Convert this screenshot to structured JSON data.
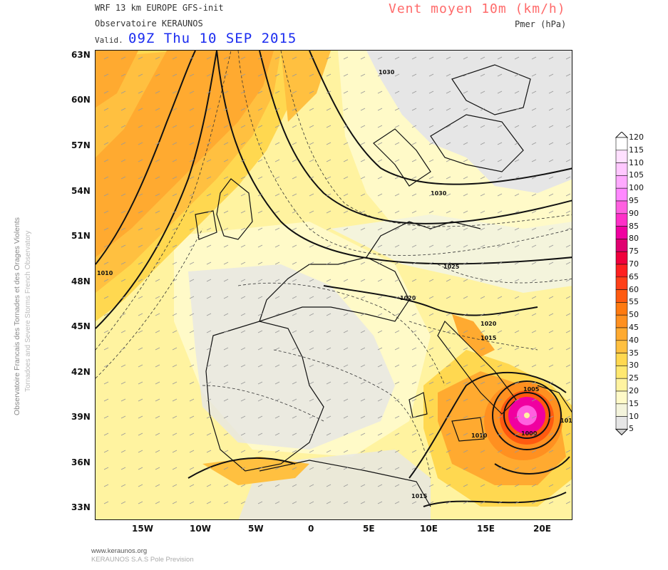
{
  "header": {
    "model_line": "WRF 13 km EUROPE  GFS-init",
    "observatory": "Observatoire KERAUNOS",
    "valid_label": "Valid.",
    "valid_date": "09Z Thu 10 SEP 2015",
    "title": "Vent moyen 10m (km/h)",
    "subtitle": "Pmer (hPa)"
  },
  "side_text": {
    "line1": "Observatoire Francais des Tornades et des Orages Violents",
    "line2": "Tornadoes and Severe Storms French Observatory"
  },
  "footer": {
    "url": "www.keraunos.org",
    "company": "KERAUNOS S.A.S Pole Prevision"
  },
  "axes": {
    "lat_labels": [
      "63N",
      "60N",
      "57N",
      "54N",
      "51N",
      "48N",
      "45N",
      "42N",
      "39N",
      "36N",
      "33N"
    ],
    "lon_labels": [
      "15W",
      "10W",
      "5W",
      "0",
      "5E",
      "10E",
      "15E",
      "20E"
    ]
  },
  "isobar_labels": [
    "1030",
    "1030",
    "1025",
    "1020",
    "1020",
    "1015",
    "1010",
    "1005",
    "1000",
    "1010",
    "1010",
    "1015"
  ],
  "legend": {
    "values": [
      "120",
      "115",
      "110",
      "105",
      "100",
      "95",
      "90",
      "85",
      "80",
      "75",
      "70",
      "65",
      "60",
      "55",
      "50",
      "45",
      "40",
      "35",
      "30",
      "25",
      "20",
      "15",
      "10",
      "5"
    ],
    "colors": [
      "#ffffff",
      "#ffe0ff",
      "#ffc8ff",
      "#ffaaff",
      "#ff88ff",
      "#ff60e0",
      "#ff30c8",
      "#f000a0",
      "#e00070",
      "#f0003c",
      "#ff2020",
      "#ff4018",
      "#ff5a10",
      "#ff7a10",
      "#ff9020",
      "#ffaa30",
      "#ffc040",
      "#ffd850",
      "#ffe870",
      "#fff3a0",
      "#fffac8",
      "#f4f4dc",
      "#e6e6e6",
      "#d2d2d2"
    ]
  },
  "colors": {
    "background_field": "#fff3a0",
    "ocean_light": "#fffac8",
    "land_grey": "#e6e6e6",
    "strong_orange": "#ffaa30",
    "storm_core": "#e00070"
  }
}
